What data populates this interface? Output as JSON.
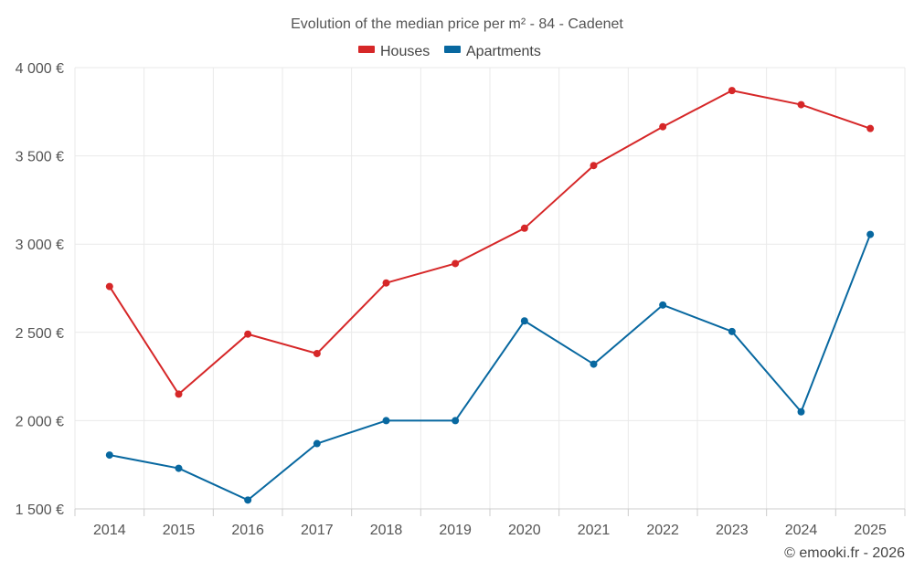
{
  "chart_data": {
    "type": "line",
    "title": "Evolution of the median price per m² - 84 - Cadenet",
    "categories": [
      "2014",
      "2015",
      "2016",
      "2017",
      "2018",
      "2019",
      "2020",
      "2021",
      "2022",
      "2023",
      "2024",
      "2025"
    ],
    "series": [
      {
        "name": "Houses",
        "color": "#d62728",
        "values": [
          2760,
          2150,
          2490,
          2380,
          2780,
          2890,
          3090,
          3445,
          3665,
          3870,
          3790,
          3655
        ]
      },
      {
        "name": "Apartments",
        "color": "#0868a0",
        "values": [
          1805,
          1730,
          1550,
          1870,
          2000,
          2000,
          2565,
          2320,
          2655,
          2505,
          2050,
          3055
        ]
      }
    ],
    "ylim": [
      1500,
      4000
    ],
    "yticks": [
      1500,
      2000,
      2500,
      3000,
      3500,
      4000
    ],
    "ytick_labels": [
      "1 500 €",
      "2 000 €",
      "2 500 €",
      "3 000 €",
      "3 500 €",
      "4 000 €"
    ],
    "xlabel": "",
    "ylabel": "",
    "grid": true,
    "legend_position": "top-center",
    "credit": "© emooki.fr - 2026"
  }
}
